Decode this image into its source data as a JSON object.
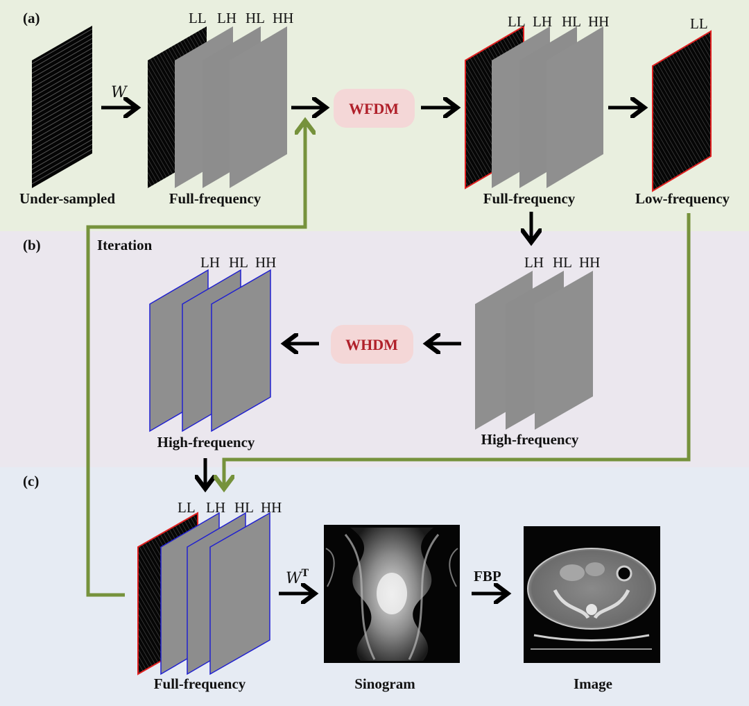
{
  "panels": {
    "a": {
      "label": "(a)",
      "color": "#e9efdf"
    },
    "b": {
      "label": "(b)",
      "color": "#ebe7ee"
    },
    "c": {
      "label": "(c)",
      "color": "#e6ebf3"
    }
  },
  "stack_band_labels": {
    "four": [
      "LL",
      "LH",
      "HL",
      "HH"
    ],
    "three": [
      "LH",
      "HL",
      "HH"
    ],
    "one": [
      "LL"
    ]
  },
  "captions": {
    "under_sampled": "Under-sampled",
    "full_frequency_1": "Full-frequency",
    "full_frequency_2": "Full-frequency",
    "low_frequency": "Low-frequency",
    "high_frequency_left": "High-frequency",
    "high_frequency_right": "High-frequency",
    "full_frequency_3": "Full-frequency",
    "sinogram": "Sinogram",
    "image": "Image",
    "iteration": "Iteration"
  },
  "modules": {
    "wfdm": "WFDM",
    "whdm": "WHDM"
  },
  "operators": {
    "w": "W",
    "wt_base": "W",
    "wt_sup": "T",
    "fbp": "FBP"
  },
  "colors": {
    "feedback_arrow": "#76923c",
    "module_box": "#f4d7d7",
    "module_text": "#b0202a",
    "highlight_red": "#e02020",
    "highlight_blue": "#2020d0",
    "slice_gray": "#8f8f8f"
  }
}
